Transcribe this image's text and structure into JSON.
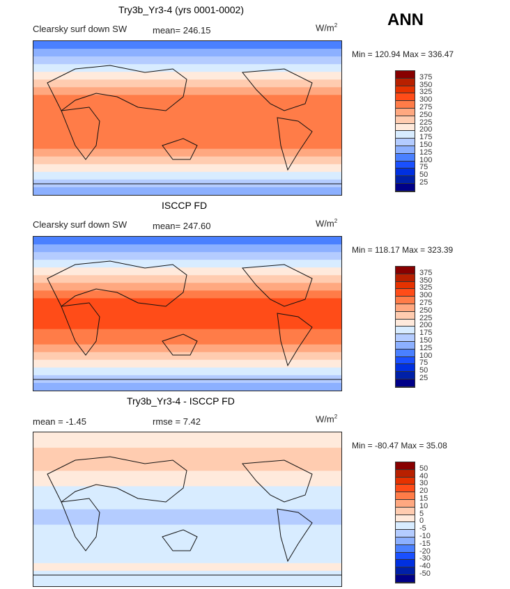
{
  "season": "ANN",
  "panels": [
    {
      "title": "Try3b_Yr3-4 (yrs 0001-0002)",
      "variable": "Clearsky surf down SW",
      "stat1": "mean= 246.15",
      "stat2": "",
      "units": "W/m",
      "units_sup": "2",
      "minmax": "Min = 120.94 Max = 336.47"
    },
    {
      "title": "ISCCP FD",
      "variable": "Clearsky surf down SW",
      "stat1": "mean= 247.60",
      "stat2": "",
      "units": "W/m",
      "units_sup": "2",
      "minmax": "Min = 118.17 Max = 323.39"
    },
    {
      "title": "Try3b_Yr3-4 - ISCCP FD",
      "variable": "",
      "stat1": "mean =  -1.45",
      "stat2": "rmse =   7.42",
      "units": "W/m",
      "units_sup": "2",
      "minmax": "Min = -80.47 Max =  35.08"
    }
  ],
  "chart_data": {
    "type": "heatmap",
    "colors": [
      "#880000",
      "#b82000",
      "#e63200",
      "#ff4c18",
      "#ff7c48",
      "#ffa880",
      "#ffccb0",
      "#ffeadc",
      "#d8ecff",
      "#b4ccff",
      "#8cb0ff",
      "#4a80ff",
      "#1a50ff",
      "#0030e0",
      "#0020a8",
      "#000088"
    ],
    "levels_abs": [
      "375",
      "350",
      "325",
      "300",
      "275",
      "250",
      "225",
      "200",
      "175",
      "150",
      "125",
      "100",
      "75",
      "50",
      "25"
    ],
    "levels_diff": [
      "50",
      "40",
      "30",
      "20",
      "15",
      "10",
      "5",
      "0",
      "-5",
      "-10",
      "-15",
      "-20",
      "-30",
      "-40",
      "-50"
    ],
    "zonal_bins_model": [
      11,
      10,
      9,
      8,
      7,
      6,
      5,
      4,
      4,
      4,
      4,
      4,
      4,
      4,
      5,
      6,
      7,
      8,
      9,
      10
    ],
    "zonal_bins_obs": [
      11,
      10,
      9,
      8,
      7,
      6,
      5,
      4,
      3,
      3,
      3,
      3,
      4,
      4,
      5,
      6,
      7,
      8,
      9,
      10
    ],
    "zonal_bins_diff": [
      7,
      7,
      6,
      6,
      6,
      7,
      7,
      8,
      8,
      8,
      9,
      9,
      8,
      8,
      8,
      8,
      8,
      7,
      8,
      8
    ]
  }
}
